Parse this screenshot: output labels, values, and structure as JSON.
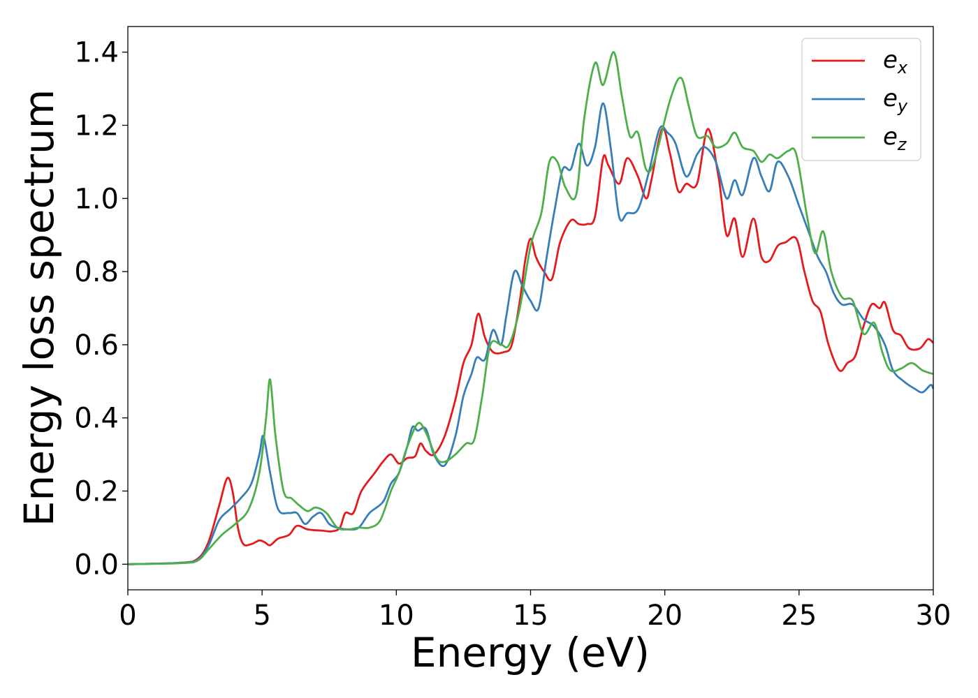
{
  "chart_data": {
    "type": "line",
    "xlabel": "Energy (eV)",
    "ylabel": "Energy loss spectrum",
    "xlim": [
      0,
      30
    ],
    "ylim": [
      -0.07,
      1.47
    ],
    "xticks": [
      0,
      5,
      10,
      15,
      20,
      25,
      30
    ],
    "yticks": [
      0.0,
      0.2,
      0.4,
      0.6,
      0.8,
      1.0,
      1.2,
      1.4
    ],
    "xtick_labels": [
      "0",
      "5",
      "10",
      "15",
      "20",
      "25",
      "30"
    ],
    "ytick_labels": [
      "0.0",
      "0.2",
      "0.4",
      "0.6",
      "0.8",
      "1.0",
      "1.2",
      "1.4"
    ],
    "grid": false,
    "legend_position": "top-right",
    "series": [
      {
        "name": "e_x",
        "label_main": "e",
        "label_sub": "x",
        "color": "#e41a1c",
        "points": [
          [
            0,
            0
          ],
          [
            2,
            0.004
          ],
          [
            2.6,
            0.015
          ],
          [
            3,
            0.06
          ],
          [
            3.4,
            0.16
          ],
          [
            3.7,
            0.235
          ],
          [
            3.9,
            0.2
          ],
          [
            4.1,
            0.1
          ],
          [
            4.3,
            0.055
          ],
          [
            4.6,
            0.055
          ],
          [
            4.9,
            0.065
          ],
          [
            5.1,
            0.06
          ],
          [
            5.3,
            0.052
          ],
          [
            5.6,
            0.07
          ],
          [
            6,
            0.08
          ],
          [
            6.3,
            0.105
          ],
          [
            6.7,
            0.095
          ],
          [
            7.2,
            0.092
          ],
          [
            7.6,
            0.09
          ],
          [
            7.9,
            0.1
          ],
          [
            8.1,
            0.14
          ],
          [
            8.4,
            0.14
          ],
          [
            8.7,
            0.2
          ],
          [
            9.2,
            0.25
          ],
          [
            9.5,
            0.28
          ],
          [
            9.8,
            0.3
          ],
          [
            10.1,
            0.275
          ],
          [
            10.4,
            0.29
          ],
          [
            10.7,
            0.295
          ],
          [
            10.9,
            0.33
          ],
          [
            11.1,
            0.31
          ],
          [
            11.4,
            0.3
          ],
          [
            11.8,
            0.35
          ],
          [
            12.2,
            0.45
          ],
          [
            12.5,
            0.55
          ],
          [
            12.8,
            0.6
          ],
          [
            13.05,
            0.685
          ],
          [
            13.3,
            0.62
          ],
          [
            13.6,
            0.58
          ],
          [
            14.0,
            0.58
          ],
          [
            14.3,
            0.6
          ],
          [
            14.6,
            0.72
          ],
          [
            14.8,
            0.83
          ],
          [
            15.0,
            0.89
          ],
          [
            15.2,
            0.84
          ],
          [
            15.5,
            0.8
          ],
          [
            15.8,
            0.78
          ],
          [
            16.1,
            0.88
          ],
          [
            16.5,
            0.94
          ],
          [
            16.8,
            0.93
          ],
          [
            17.1,
            0.93
          ],
          [
            17.4,
            0.95
          ],
          [
            17.7,
            1.11
          ],
          [
            17.9,
            1.09
          ],
          [
            18.3,
            1.04
          ],
          [
            18.6,
            1.11
          ],
          [
            19.0,
            1.06
          ],
          [
            19.3,
            1.0
          ],
          [
            19.5,
            1.05
          ],
          [
            19.9,
            1.19
          ],
          [
            20.2,
            1.12
          ],
          [
            20.5,
            1.02
          ],
          [
            20.8,
            1.04
          ],
          [
            21.2,
            1.04
          ],
          [
            21.6,
            1.19
          ],
          [
            22.0,
            1.06
          ],
          [
            22.3,
            0.9
          ],
          [
            22.6,
            0.945
          ],
          [
            22.9,
            0.84
          ],
          [
            23.3,
            0.945
          ],
          [
            23.6,
            0.84
          ],
          [
            23.9,
            0.83
          ],
          [
            24.2,
            0.87
          ],
          [
            24.5,
            0.88
          ],
          [
            24.9,
            0.89
          ],
          [
            25.2,
            0.8
          ],
          [
            25.5,
            0.72
          ],
          [
            25.8,
            0.69
          ],
          [
            26.1,
            0.6
          ],
          [
            26.5,
            0.53
          ],
          [
            26.8,
            0.55
          ],
          [
            27.1,
            0.57
          ],
          [
            27.4,
            0.65
          ],
          [
            27.7,
            0.71
          ],
          [
            28.0,
            0.7
          ],
          [
            28.2,
            0.715
          ],
          [
            28.5,
            0.64
          ],
          [
            28.8,
            0.625
          ],
          [
            29.1,
            0.59
          ],
          [
            29.5,
            0.59
          ],
          [
            29.8,
            0.615
          ],
          [
            30.0,
            0.605
          ]
        ]
      },
      {
        "name": "e_y",
        "label_main": "e",
        "label_sub": "y",
        "color": "#377eb8",
        "points": [
          [
            0,
            0
          ],
          [
            2,
            0.004
          ],
          [
            2.6,
            0.012
          ],
          [
            3,
            0.05
          ],
          [
            3.4,
            0.12
          ],
          [
            3.8,
            0.15
          ],
          [
            4.2,
            0.18
          ],
          [
            4.6,
            0.22
          ],
          [
            4.9,
            0.3
          ],
          [
            5.05,
            0.35
          ],
          [
            5.3,
            0.25
          ],
          [
            5.6,
            0.15
          ],
          [
            6.0,
            0.14
          ],
          [
            6.3,
            0.14
          ],
          [
            6.6,
            0.11
          ],
          [
            6.9,
            0.13
          ],
          [
            7.2,
            0.14
          ],
          [
            7.5,
            0.11
          ],
          [
            7.8,
            0.1
          ],
          [
            8.2,
            0.095
          ],
          [
            8.6,
            0.1
          ],
          [
            9.0,
            0.14
          ],
          [
            9.5,
            0.17
          ],
          [
            9.8,
            0.22
          ],
          [
            10.1,
            0.25
          ],
          [
            10.4,
            0.32
          ],
          [
            10.6,
            0.375
          ],
          [
            10.8,
            0.365
          ],
          [
            11.1,
            0.37
          ],
          [
            11.4,
            0.3
          ],
          [
            11.8,
            0.27
          ],
          [
            12.2,
            0.35
          ],
          [
            12.5,
            0.46
          ],
          [
            12.8,
            0.52
          ],
          [
            13.0,
            0.565
          ],
          [
            13.3,
            0.56
          ],
          [
            13.6,
            0.64
          ],
          [
            13.9,
            0.6
          ],
          [
            14.1,
            0.68
          ],
          [
            14.4,
            0.8
          ],
          [
            14.7,
            0.76
          ],
          [
            15.0,
            0.72
          ],
          [
            15.3,
            0.7
          ],
          [
            15.6,
            0.84
          ],
          [
            15.9,
            0.97
          ],
          [
            16.2,
            1.08
          ],
          [
            16.5,
            1.08
          ],
          [
            16.8,
            1.15
          ],
          [
            17.1,
            1.09
          ],
          [
            17.4,
            1.14
          ],
          [
            17.7,
            1.26
          ],
          [
            18.0,
            1.13
          ],
          [
            18.3,
            0.95
          ],
          [
            18.6,
            0.96
          ],
          [
            19.0,
            0.97
          ],
          [
            19.4,
            1.07
          ],
          [
            19.8,
            1.19
          ],
          [
            20.1,
            1.18
          ],
          [
            20.4,
            1.15
          ],
          [
            20.8,
            1.06
          ],
          [
            21.2,
            1.12
          ],
          [
            21.5,
            1.14
          ],
          [
            21.9,
            1.1
          ],
          [
            22.3,
            1.0
          ],
          [
            22.6,
            1.05
          ],
          [
            22.9,
            1.01
          ],
          [
            23.3,
            1.11
          ],
          [
            23.6,
            1.06
          ],
          [
            23.9,
            1.02
          ],
          [
            24.2,
            1.1
          ],
          [
            24.6,
            1.06
          ],
          [
            25.0,
            0.98
          ],
          [
            25.4,
            0.9
          ],
          [
            25.7,
            0.84
          ],
          [
            26.0,
            0.8
          ],
          [
            26.3,
            0.74
          ],
          [
            26.6,
            0.71
          ],
          [
            27.0,
            0.71
          ],
          [
            27.4,
            0.67
          ],
          [
            27.8,
            0.65
          ],
          [
            28.2,
            0.6
          ],
          [
            28.5,
            0.53
          ],
          [
            28.9,
            0.5
          ],
          [
            29.3,
            0.48
          ],
          [
            29.6,
            0.47
          ],
          [
            29.9,
            0.49
          ],
          [
            30.0,
            0.48
          ]
        ]
      },
      {
        "name": "e_z",
        "label_main": "e",
        "label_sub": "z",
        "color": "#4daf4a",
        "points": [
          [
            0,
            0
          ],
          [
            2,
            0.003
          ],
          [
            2.6,
            0.01
          ],
          [
            3,
            0.04
          ],
          [
            3.5,
            0.08
          ],
          [
            4.0,
            0.11
          ],
          [
            4.5,
            0.15
          ],
          [
            4.9,
            0.25
          ],
          [
            5.15,
            0.4
          ],
          [
            5.3,
            0.505
          ],
          [
            5.5,
            0.35
          ],
          [
            5.8,
            0.2
          ],
          [
            6.1,
            0.18
          ],
          [
            6.4,
            0.16
          ],
          [
            6.7,
            0.145
          ],
          [
            7.0,
            0.155
          ],
          [
            7.4,
            0.14
          ],
          [
            7.8,
            0.1
          ],
          [
            8.2,
            0.095
          ],
          [
            8.6,
            0.1
          ],
          [
            9.0,
            0.1
          ],
          [
            9.4,
            0.12
          ],
          [
            9.8,
            0.2
          ],
          [
            10.1,
            0.25
          ],
          [
            10.4,
            0.32
          ],
          [
            10.8,
            0.385
          ],
          [
            11.1,
            0.36
          ],
          [
            11.5,
            0.29
          ],
          [
            11.8,
            0.28
          ],
          [
            12.2,
            0.3
          ],
          [
            12.6,
            0.33
          ],
          [
            12.9,
            0.34
          ],
          [
            13.2,
            0.46
          ],
          [
            13.5,
            0.6
          ],
          [
            13.9,
            0.6
          ],
          [
            14.2,
            0.6
          ],
          [
            14.6,
            0.7
          ],
          [
            15.0,
            0.87
          ],
          [
            15.4,
            0.96
          ],
          [
            15.7,
            1.1
          ],
          [
            16.0,
            1.1
          ],
          [
            16.3,
            1.03
          ],
          [
            16.7,
            1.01
          ],
          [
            17.0,
            1.22
          ],
          [
            17.4,
            1.37
          ],
          [
            17.7,
            1.31
          ],
          [
            18.1,
            1.4
          ],
          [
            18.4,
            1.28
          ],
          [
            18.7,
            1.17
          ],
          [
            19.0,
            1.18
          ],
          [
            19.3,
            1.08
          ],
          [
            19.6,
            1.1
          ],
          [
            20.2,
            1.27
          ],
          [
            20.6,
            1.33
          ],
          [
            20.9,
            1.25
          ],
          [
            21.2,
            1.17
          ],
          [
            21.6,
            1.17
          ],
          [
            21.9,
            1.14
          ],
          [
            22.3,
            1.15
          ],
          [
            22.6,
            1.18
          ],
          [
            22.9,
            1.14
          ],
          [
            23.3,
            1.13
          ],
          [
            23.6,
            1.1
          ],
          [
            23.9,
            1.12
          ],
          [
            24.2,
            1.11
          ],
          [
            24.6,
            1.13
          ],
          [
            24.9,
            1.12
          ],
          [
            25.3,
            0.95
          ],
          [
            25.6,
            0.85
          ],
          [
            25.9,
            0.91
          ],
          [
            26.2,
            0.8
          ],
          [
            26.6,
            0.73
          ],
          [
            27.0,
            0.72
          ],
          [
            27.4,
            0.63
          ],
          [
            27.8,
            0.66
          ],
          [
            28.1,
            0.58
          ],
          [
            28.4,
            0.53
          ],
          [
            28.8,
            0.535
          ],
          [
            29.2,
            0.55
          ],
          [
            29.6,
            0.53
          ],
          [
            30.0,
            0.52
          ]
        ]
      }
    ]
  }
}
